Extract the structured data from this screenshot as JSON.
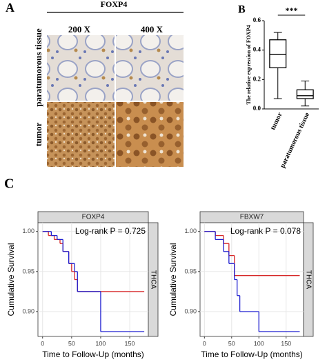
{
  "panel_labels": {
    "a": "A",
    "b": "B",
    "c": "C"
  },
  "figure_a": {
    "header": "FOXP4",
    "columns": [
      "200 X",
      "400 X"
    ],
    "rows": [
      "paratumorous tissue",
      "tumor"
    ]
  },
  "chart_data": [
    {
      "type": "box",
      "ylabel": "The relative expression of FOXP4",
      "categories": [
        "tumor",
        "paratumorous tissue"
      ],
      "boxes": [
        {
          "min": 0.07,
          "q1": 0.28,
          "median": 0.37,
          "q3": 0.47,
          "max": 0.52
        },
        {
          "min": 0.02,
          "q1": 0.07,
          "median": 0.09,
          "q3": 0.13,
          "max": 0.19
        }
      ],
      "annotation": "***",
      "color": "#000000",
      "ylim": [
        0,
        0.6
      ],
      "yticks": [
        {
          "value": 0,
          "label": "0.0"
        },
        {
          "value": 0.2,
          "label": "0.2"
        },
        {
          "value": 0.4,
          "label": "0.4"
        },
        {
          "value": 0.6,
          "label": "0.6"
        }
      ]
    },
    {
      "type": "step",
      "title": "FOXP4",
      "annotation": "Log-rank P = 0.725",
      "strip": "THCA",
      "xlabel": "Time to Follow-Up (months)",
      "ylabel": "Cumulative Survival",
      "xlim": [
        -8,
        182
      ],
      "xticks": [
        0,
        50,
        100,
        150
      ],
      "ylim": [
        0.869,
        1.011
      ],
      "yticks": [
        {
          "value": 0.9,
          "label": "0.90"
        },
        {
          "value": 0.95,
          "label": "0.95"
        },
        {
          "value": 1,
          "label": "1.00"
        }
      ],
      "grid": true,
      "series": [
        {
          "color": "#d62728",
          "x": [
            0,
            10,
            20,
            30,
            35,
            45,
            50,
            55,
            60,
            175
          ],
          "values": [
            1,
            0.995,
            0.99,
            0.985,
            0.975,
            0.96,
            0.95,
            0.94,
            0.925,
            0.925
          ]
        },
        {
          "color": "#1f1fd0",
          "x": [
            0,
            15,
            25,
            35,
            45,
            55,
            60,
            100,
            175
          ],
          "values": [
            1,
            0.995,
            0.99,
            0.975,
            0.96,
            0.95,
            0.925,
            0.875,
            0.875
          ]
        }
      ]
    },
    {
      "type": "step",
      "title": "FBXW7",
      "annotation": "Log-rank P = 0.078",
      "strip": "THCA",
      "xlabel": "Time to Follow-Up (months)",
      "ylabel": "Cumulative Survival",
      "xlim": [
        -8,
        182
      ],
      "xticks": [
        0,
        50,
        100,
        150
      ],
      "ylim": [
        0.869,
        1.011
      ],
      "yticks": [
        {
          "value": 0.9,
          "label": "0.90"
        },
        {
          "value": 0.95,
          "label": "0.95"
        },
        {
          "value": 1,
          "label": "1.00"
        }
      ],
      "grid": true,
      "series": [
        {
          "color": "#d62728",
          "x": [
            0,
            20,
            35,
            45,
            55,
            175
          ],
          "values": [
            1,
            0.995,
            0.985,
            0.97,
            0.945,
            0.945
          ]
        },
        {
          "color": "#1f1fd0",
          "x": [
            0,
            20,
            35,
            45,
            55,
            60,
            65,
            100,
            175
          ],
          "values": [
            1,
            0.99,
            0.975,
            0.96,
            0.94,
            0.92,
            0.9,
            0.875,
            0.875
          ]
        }
      ]
    }
  ]
}
